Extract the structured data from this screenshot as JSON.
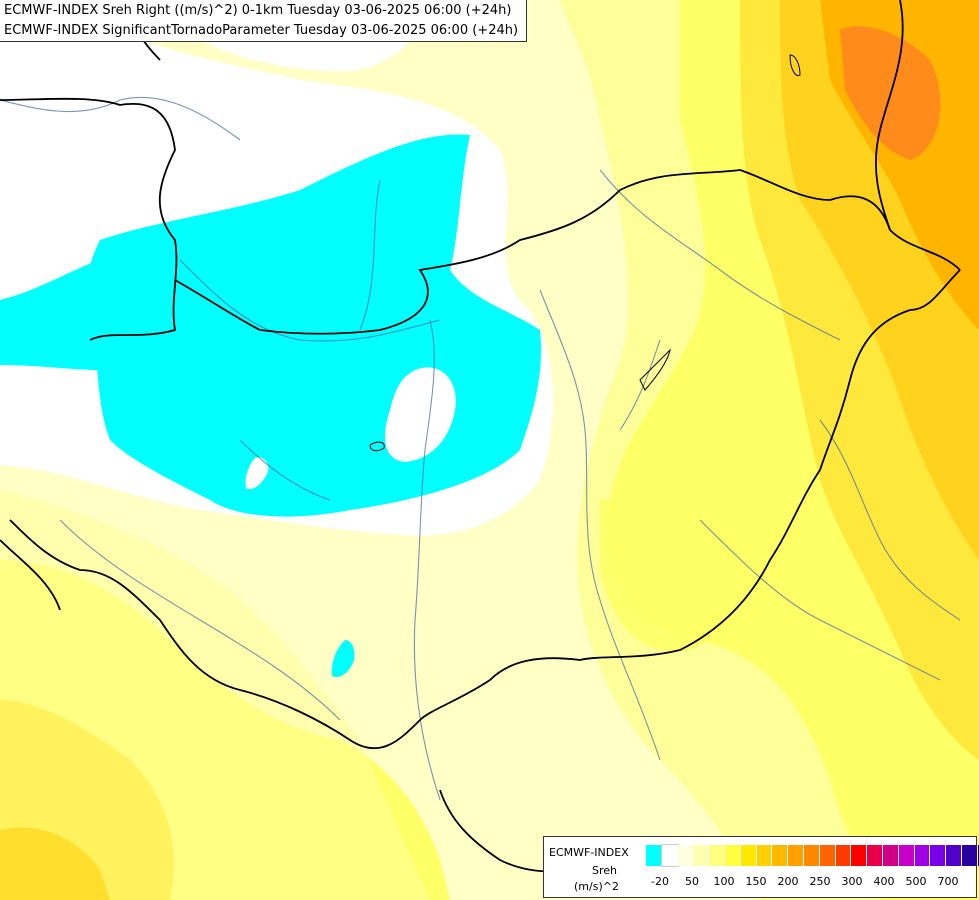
{
  "header": {
    "line1": "ECMWF-INDEX Sreh Right ((m/s)^2) 0-1km Tuesday 03-06-2025 06:00 (+24h)",
    "line2": "ECMWF-INDEX SignificantTornadoParameter Tuesday 03-06-2025 06:00 (+24h)"
  },
  "legend": {
    "model": "ECMWF-INDEX",
    "parameter": "Sreh",
    "unit": "(m/s)^2",
    "colors": [
      "#00ffff",
      "#ffffff",
      "#ffffe0",
      "#ffffb0",
      "#ffff80",
      "#ffff40",
      "#ffe800",
      "#ffd000",
      "#ffb800",
      "#ffa000",
      "#ff8800",
      "#ff6400",
      "#ff3c00",
      "#ff0000",
      "#e8004a",
      "#d20086",
      "#c800c8",
      "#a000e6",
      "#7800e6",
      "#5000c8",
      "#2800a0",
      "#000080"
    ],
    "tick_labels": [
      "-20",
      "50",
      "100",
      "150",
      "200",
      "250",
      "300",
      "400",
      "500",
      "700"
    ]
  },
  "map_colors": {
    "pale_yellow": "#ffffc6",
    "light_yellow": "#ffff9a",
    "yellow": "#ffff66",
    "deep_yellow": "#ffe83c",
    "gold": "#ffd21e",
    "orange": "#ffb400",
    "dark_orange": "#ff8c1a",
    "cyan": "#00ffff",
    "border": "#000000",
    "river": "#4a6fa5"
  }
}
